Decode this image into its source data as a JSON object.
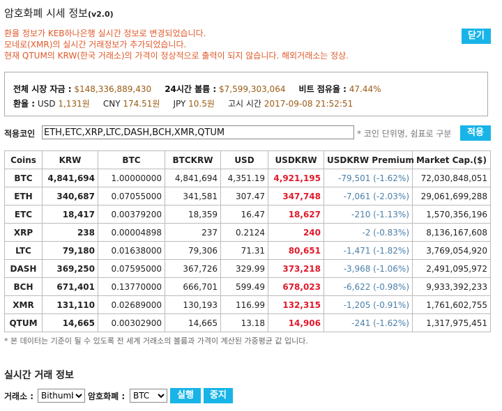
{
  "header": {
    "title": "암호화폐 시세 정보",
    "version": "(v2.0)",
    "close_label": "닫기"
  },
  "notices": [
    "환율 정보가 KEB하나은행 실시간 정보로 변경되었습니다.",
    "모네로(XMR)의 실시간 거래정보가 추가되었습니다.",
    "현재 QTUM의 KRW(한국 거래소)의 가격이 정상적으로 출력이 되지 않습니다. 해외거래소는 정상."
  ],
  "summary": {
    "market_cap_label": "전체 시장 자금 :",
    "market_cap_value": "$148,336,889,430",
    "volume_label": "24시간 볼륨 :",
    "volume_value": "$7,599,303,064",
    "dominance_label": "비트 점유율 :",
    "dominance_value": "47.44%",
    "fx_label": "환율 :",
    "usd_label": "USD",
    "usd_value": "1,131원",
    "cny_label": "CNY",
    "cny_value": "174.51원",
    "jpy_label": "JPY",
    "jpy_value": "10.5원",
    "time_label": "고시 시간",
    "time_value": "2017-09-08 21:52:51"
  },
  "filter": {
    "label": "적용코인",
    "value": "ETH,ETC,XRP,LTC,DASH,BCH,XMR,QTUM",
    "hint": "* 코인 단위명, 쉼표로 구분",
    "apply_label": "적용"
  },
  "table": {
    "headers": [
      "Coins",
      "KRW",
      "BTC",
      "BTCKRW",
      "USD",
      "USDKRW",
      "USDKRW Premium",
      "Market Cap.($)"
    ],
    "rows": [
      [
        "BTC",
        "4,841,694",
        "1.00000000",
        "4,841,694",
        "4,351.19",
        "4,921,195",
        "-79,501 (-1.62%)",
        "72,030,848,051"
      ],
      [
        "ETH",
        "340,687",
        "0.07055000",
        "341,581",
        "307.47",
        "347,748",
        "-7,061 (-2.03%)",
        "29,061,699,288"
      ],
      [
        "ETC",
        "18,417",
        "0.00379200",
        "18,359",
        "16.47",
        "18,627",
        "-210 (-1.13%)",
        "1,570,356,196"
      ],
      [
        "XRP",
        "238",
        "0.00004898",
        "237",
        "0.2124",
        "240",
        "-2 (-0.83%)",
        "8,136,167,608"
      ],
      [
        "LTC",
        "79,180",
        "0.01638000",
        "79,306",
        "71.31",
        "80,651",
        "-1,471 (-1.82%)",
        "3,769,054,920"
      ],
      [
        "DASH",
        "369,250",
        "0.07595000",
        "367,726",
        "329.99",
        "373,218",
        "-3,968 (-1.06%)",
        "2,491,095,972"
      ],
      [
        "BCH",
        "671,401",
        "0.13770000",
        "666,701",
        "599.49",
        "678,023",
        "-6,622 (-0.98%)",
        "9,933,392,233"
      ],
      [
        "XMR",
        "131,110",
        "0.02689000",
        "130,193",
        "116.99",
        "132,315",
        "-1,205 (-0.91%)",
        "1,761,602,755"
      ],
      [
        "QTUM",
        "14,665",
        "0.00302900",
        "14,665",
        "13.18",
        "14,906",
        "-241 (-1.62%)",
        "1,317,975,451"
      ]
    ]
  },
  "footnote": "* 본 데이터는 기준이 될 수 있도록 전 세계 거래소의 볼륨과 가격이 계산된 가중평균 값 입니다.",
  "realtime": {
    "title": "실시간 거래 정보",
    "exchange_label": "거래소 :",
    "exchange_value": "Bithumb",
    "coin_label": "암호화폐 :",
    "coin_value": "BTC",
    "run_label": "실행",
    "stop_label": "중지"
  },
  "colors": {
    "accent": "#18b4e8",
    "notice": "#e0592a",
    "usdkrw": "#e01a2c",
    "premium": "#4a7fa8",
    "summary_value": "#9a5a14"
  }
}
